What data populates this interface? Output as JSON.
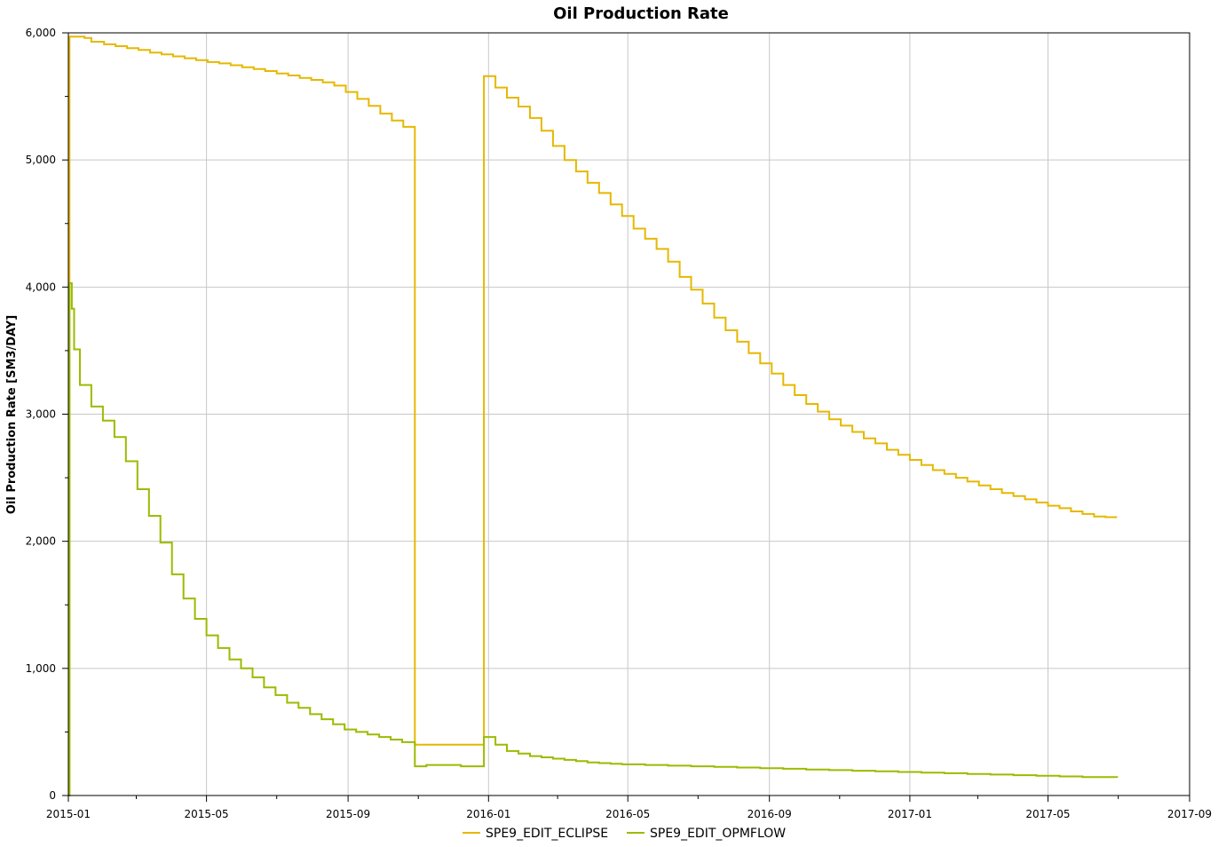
{
  "chart_data": {
    "type": "line",
    "step": true,
    "title": "Oil Production Rate",
    "xlabel": "",
    "ylabel": "Oil Production Rate [SM3/DAY]",
    "xlim": [
      "2015-01-01",
      "2017-09-01"
    ],
    "ylim": [
      0,
      6000
    ],
    "grid": true,
    "legend_position": "bottom",
    "x_ticks": [
      "2015-01",
      "2015-05",
      "2015-09",
      "2016-01",
      "2016-05",
      "2016-09",
      "2017-01",
      "2017-05",
      "2017-09"
    ],
    "y_ticks": [
      "0",
      "1,000",
      "2,000",
      "3,000",
      "4,000",
      "5,000",
      "6,000"
    ],
    "y_tick_values": [
      0,
      1000,
      2000,
      3000,
      4000,
      5000,
      6000
    ],
    "series": [
      {
        "name": "SPE9_EDIT_ECLIPSE",
        "color": "#e6b800",
        "x": [
          "2015-01-01",
          "2015-01-02",
          "2015-01-15",
          "2015-01-21",
          "2015-02-01",
          "2015-02-11",
          "2015-02-21",
          "2015-03-03",
          "2015-03-13",
          "2015-03-23",
          "2015-04-02",
          "2015-04-12",
          "2015-04-22",
          "2015-05-02",
          "2015-05-12",
          "2015-05-22",
          "2015-06-01",
          "2015-06-11",
          "2015-06-21",
          "2015-07-01",
          "2015-07-11",
          "2015-07-21",
          "2015-07-31",
          "2015-08-10",
          "2015-08-20",
          "2015-08-30",
          "2015-09-09",
          "2015-09-19",
          "2015-09-29",
          "2015-10-09",
          "2015-10-19",
          "2015-10-29",
          "2015-12-28",
          "2016-01-07",
          "2016-01-17",
          "2016-01-27",
          "2016-02-06",
          "2016-02-16",
          "2016-02-26",
          "2016-03-07",
          "2016-03-17",
          "2016-03-27",
          "2016-04-06",
          "2016-04-16",
          "2016-04-26",
          "2016-05-06",
          "2016-05-16",
          "2016-05-26",
          "2016-06-05",
          "2016-06-15",
          "2016-06-25",
          "2016-07-05",
          "2016-07-15",
          "2016-07-25",
          "2016-08-04",
          "2016-08-14",
          "2016-08-24",
          "2016-09-03",
          "2016-09-13",
          "2016-09-23",
          "2016-10-03",
          "2016-10-13",
          "2016-10-23",
          "2016-11-02",
          "2016-11-12",
          "2016-11-22",
          "2016-12-02",
          "2016-12-12",
          "2016-12-22",
          "2017-01-01",
          "2017-01-11",
          "2017-01-21",
          "2017-01-31",
          "2017-02-10",
          "2017-02-20",
          "2017-03-02",
          "2017-03-12",
          "2017-03-22",
          "2017-04-01",
          "2017-04-11",
          "2017-04-21",
          "2017-05-01",
          "2017-05-11",
          "2017-05-21",
          "2017-05-31",
          "2017-06-10",
          "2017-06-20",
          "2017-06-30"
        ],
        "y": [
          0,
          5970,
          5960,
          5930,
          5910,
          5895,
          5880,
          5865,
          5845,
          5830,
          5815,
          5800,
          5785,
          5770,
          5760,
          5745,
          5730,
          5715,
          5700,
          5680,
          5665,
          5645,
          5630,
          5610,
          5585,
          5535,
          5480,
          5425,
          5365,
          5310,
          5260,
          400,
          5660,
          5570,
          5490,
          5420,
          5330,
          5230,
          5110,
          5000,
          4910,
          4820,
          4740,
          4650,
          4560,
          4460,
          4380,
          4300,
          4200,
          4080,
          3980,
          3870,
          3760,
          3660,
          3570,
          3480,
          3400,
          3320,
          3230,
          3150,
          3080,
          3020,
          2960,
          2910,
          2860,
          2810,
          2770,
          2720,
          2680,
          2640,
          2600,
          2560,
          2530,
          2500,
          2470,
          2440,
          2410,
          2380,
          2355,
          2330,
          2305,
          2280,
          2260,
          2235,
          2215,
          2195,
          2190,
          2190
        ]
      },
      {
        "name": "SPE9_EDIT_OPMFLOW",
        "color": "#9bbb00",
        "x": [
          "2015-01-01",
          "2015-01-02",
          "2015-01-04",
          "2015-01-06",
          "2015-01-11",
          "2015-01-21",
          "2015-01-31",
          "2015-02-10",
          "2015-02-20",
          "2015-03-02",
          "2015-03-12",
          "2015-03-22",
          "2015-04-01",
          "2015-04-11",
          "2015-04-21",
          "2015-05-01",
          "2015-05-11",
          "2015-05-21",
          "2015-05-31",
          "2015-06-10",
          "2015-06-20",
          "2015-06-30",
          "2015-07-10",
          "2015-07-20",
          "2015-07-30",
          "2015-08-09",
          "2015-08-19",
          "2015-08-29",
          "2015-09-08",
          "2015-09-18",
          "2015-09-28",
          "2015-10-08",
          "2015-10-18",
          "2015-10-29",
          "2015-11-08",
          "2015-11-18",
          "2015-11-28",
          "2015-12-08",
          "2015-12-28",
          "2016-01-07",
          "2016-01-17",
          "2016-01-27",
          "2016-02-06",
          "2016-02-16",
          "2016-02-26",
          "2016-03-07",
          "2016-03-17",
          "2016-03-27",
          "2016-04-06",
          "2016-04-16",
          "2016-04-26",
          "2016-05-16",
          "2016-06-05",
          "2016-06-25",
          "2016-07-15",
          "2016-08-04",
          "2016-08-24",
          "2016-09-13",
          "2016-10-03",
          "2016-10-23",
          "2016-11-12",
          "2016-12-02",
          "2016-12-22",
          "2017-01-11",
          "2017-01-31",
          "2017-02-20",
          "2017-03-12",
          "2017-04-01",
          "2017-04-21",
          "2017-05-11",
          "2017-05-31",
          "2017-06-30"
        ],
        "y": [
          0,
          4030,
          3830,
          3510,
          3230,
          3060,
          2950,
          2820,
          2630,
          2410,
          2200,
          1990,
          1740,
          1550,
          1390,
          1260,
          1160,
          1070,
          1000,
          930,
          850,
          790,
          730,
          690,
          640,
          600,
          560,
          520,
          500,
          480,
          460,
          440,
          420,
          230,
          240,
          240,
          240,
          230,
          460,
          400,
          350,
          330,
          310,
          300,
          290,
          280,
          270,
          260,
          255,
          250,
          245,
          240,
          235,
          230,
          225,
          220,
          215,
          210,
          205,
          200,
          195,
          190,
          185,
          180,
          175,
          170,
          165,
          160,
          155,
          150,
          145,
          140
        ]
      }
    ]
  }
}
